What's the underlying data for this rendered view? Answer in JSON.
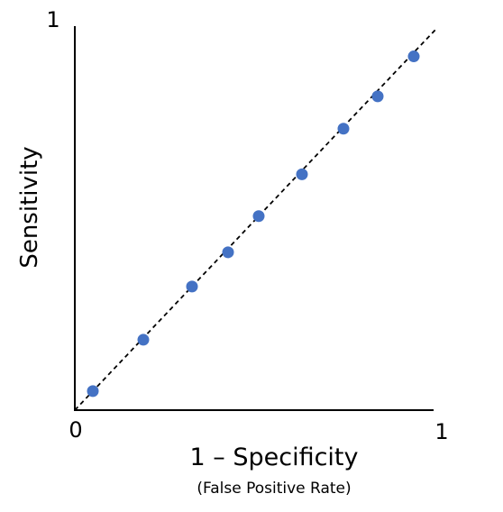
{
  "chart_data": {
    "type": "scatter",
    "xlabel": "1 – Specificity",
    "xlabel_sub": "(False Positive Rate)",
    "ylabel": "Sensitivity",
    "xlim": [
      0,
      1
    ],
    "ylim": [
      0,
      1
    ],
    "x_ticks": [
      "0",
      "1"
    ],
    "y_ticks": [
      "1"
    ],
    "grid": false,
    "diagonal_line": true,
    "point_color": "#4472C4",
    "points": [
      {
        "x": 0.05,
        "y": 0.05
      },
      {
        "x": 0.19,
        "y": 0.185
      },
      {
        "x": 0.325,
        "y": 0.325
      },
      {
        "x": 0.425,
        "y": 0.415
      },
      {
        "x": 0.51,
        "y": 0.51
      },
      {
        "x": 0.63,
        "y": 0.62
      },
      {
        "x": 0.745,
        "y": 0.74
      },
      {
        "x": 0.84,
        "y": 0.825
      },
      {
        "x": 0.94,
        "y": 0.93
      }
    ]
  }
}
